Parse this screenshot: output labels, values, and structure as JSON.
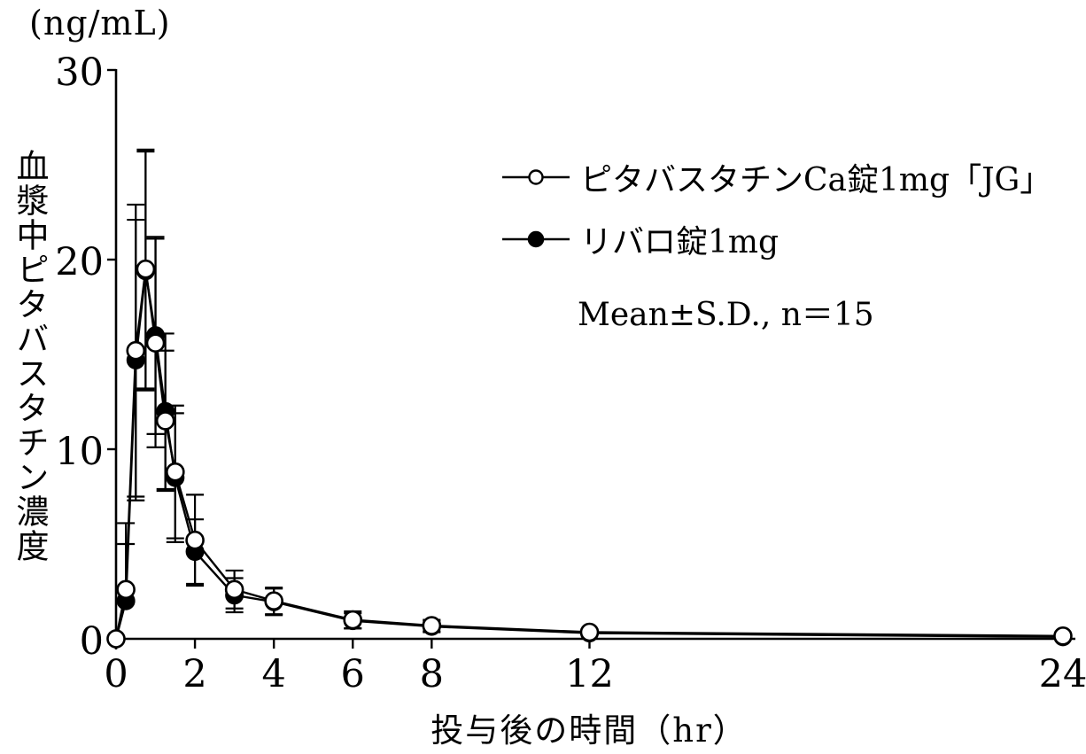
{
  "chart_data": {
    "type": "line",
    "unit_label": "(ng/mL)",
    "ylabel": "血漿中ピタバスタチン濃度",
    "xlabel": "投与後の時間（hr）",
    "annotation": "Mean±S.D., n＝15",
    "xlim": [
      0,
      24
    ],
    "ylim": [
      0,
      30
    ],
    "grid": false,
    "legend_position": "upper-right-inside",
    "y_ticks": [
      {
        "value": 0,
        "label": "0"
      },
      {
        "value": 10,
        "label": "10"
      },
      {
        "value": 20,
        "label": "20"
      },
      {
        "value": 30,
        "label": "30"
      }
    ],
    "x_ticks": [
      {
        "value": 0,
        "label": "0",
        "has_mark": true
      },
      {
        "value": 2,
        "label": "2",
        "has_mark": true
      },
      {
        "value": 4,
        "label": "4",
        "has_mark": true
      },
      {
        "value": 6,
        "label": "6",
        "has_mark": true
      },
      {
        "value": 8,
        "label": "8",
        "has_mark": true
      },
      {
        "value": 12,
        "label": "12",
        "has_mark": true
      },
      {
        "value": 24,
        "label": "24",
        "has_mark": false
      }
    ],
    "series": [
      {
        "name": "ピタバスタチンCa錠1mg「JG」",
        "marker": "open-circle",
        "color": "#000000",
        "points": [
          {
            "t": 0,
            "mean": 0,
            "sd": 0
          },
          {
            "t": 0.25,
            "mean": 2.6,
            "sd": 3.5
          },
          {
            "t": 0.5,
            "mean": 15.2,
            "sd": 7.7
          },
          {
            "t": 0.75,
            "mean": 19.5,
            "sd": 6.3
          },
          {
            "t": 1,
            "mean": 15.6,
            "sd": 5.5
          },
          {
            "t": 1.25,
            "mean": 11.5,
            "sd": 3.7
          },
          {
            "t": 1.5,
            "mean": 8.8,
            "sd": 3.5
          },
          {
            "t": 2,
            "mean": 5.2,
            "sd": 2.4
          },
          {
            "t": 3,
            "mean": 2.6,
            "sd": 1.0
          },
          {
            "t": 4,
            "mean": 2.0,
            "sd": 0.7
          },
          {
            "t": 6,
            "mean": 1.0,
            "sd": 0.45
          },
          {
            "t": 8,
            "mean": 0.7,
            "sd": 0.3
          },
          {
            "t": 12,
            "mean": 0.35,
            "sd": 0.15
          },
          {
            "t": 24,
            "mean": 0.15,
            "sd": 0.1
          }
        ]
      },
      {
        "name": "リバロ錠1mg",
        "marker": "filled-circle",
        "color": "#000000",
        "points": [
          {
            "t": 0,
            "mean": 0,
            "sd": 0
          },
          {
            "t": 0.25,
            "mean": 2.0,
            "sd": 3.0
          },
          {
            "t": 0.5,
            "mean": 14.7,
            "sd": 7.4
          },
          {
            "t": 0.75,
            "mean": 19.4,
            "sd": 6.3
          },
          {
            "t": 1,
            "mean": 16.0,
            "sd": 5.2
          },
          {
            "t": 1.25,
            "mean": 12.0,
            "sd": 4.1
          },
          {
            "t": 1.5,
            "mean": 8.5,
            "sd": 3.4
          },
          {
            "t": 2,
            "mean": 4.6,
            "sd": 1.7
          },
          {
            "t": 3,
            "mean": 2.3,
            "sd": 0.9
          },
          {
            "t": 4,
            "mean": 1.95,
            "sd": 0.7
          },
          {
            "t": 6,
            "mean": 0.95,
            "sd": 0.4
          },
          {
            "t": 8,
            "mean": 0.65,
            "sd": 0.3
          },
          {
            "t": 12,
            "mean": 0.3,
            "sd": 0.15
          },
          {
            "t": 24,
            "mean": 0.1,
            "sd": 0.05
          }
        ]
      }
    ],
    "colors": {
      "ink": "#000000",
      "background": "#ffffff"
    }
  }
}
